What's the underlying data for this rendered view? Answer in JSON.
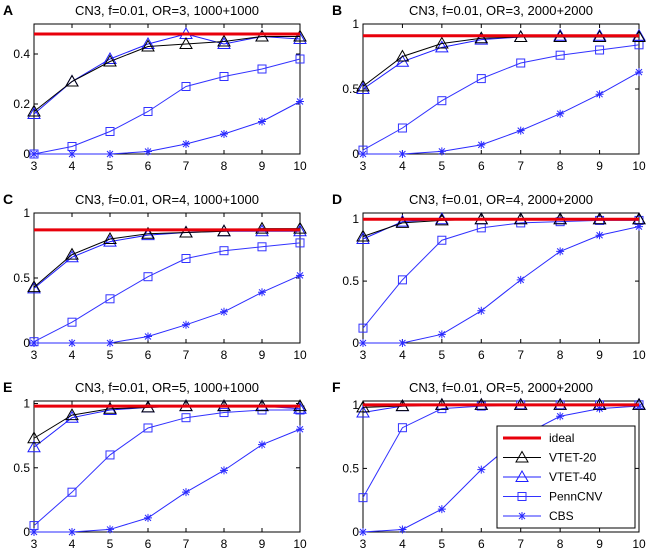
{
  "chart_data": [
    {
      "letter": "A",
      "type": "line",
      "title": "CN3, f=0.01, OR=3, 1000+1000",
      "x": [
        3,
        4,
        5,
        6,
        7,
        8,
        9,
        10
      ],
      "xlim": [
        3,
        10
      ],
      "ylim": [
        0,
        0.52
      ],
      "yticks": [
        0,
        0.2,
        0.4
      ],
      "ytick_labels": [
        "0",
        "0.2",
        "0.4"
      ],
      "xtick_labels": [
        "3",
        "4",
        "5",
        "6",
        "7",
        "8",
        "9",
        "10"
      ],
      "series": [
        {
          "name": "ideal",
          "values": [
            0.48,
            0.48,
            0.48,
            0.48,
            0.48,
            0.48,
            0.48,
            0.48
          ]
        },
        {
          "name": "VTET-20",
          "values": [
            0.17,
            0.29,
            0.37,
            0.43,
            0.44,
            0.45,
            0.47,
            0.47
          ]
        },
        {
          "name": "VTET-40",
          "values": [
            0.16,
            0.29,
            0.38,
            0.44,
            0.48,
            0.44,
            0.47,
            0.46
          ]
        },
        {
          "name": "PennCNV",
          "values": [
            0.0,
            0.03,
            0.09,
            0.17,
            0.27,
            0.31,
            0.34,
            0.38
          ]
        },
        {
          "name": "CBS",
          "values": [
            0.0,
            0.0,
            0.0,
            0.01,
            0.04,
            0.08,
            0.13,
            0.21
          ]
        }
      ]
    },
    {
      "letter": "B",
      "type": "line",
      "title": "CN3, f=0.01, OR=3, 2000+2000",
      "x": [
        3,
        4,
        5,
        6,
        7,
        8,
        9,
        10
      ],
      "xlim": [
        3,
        10
      ],
      "ylim": [
        0,
        1
      ],
      "yticks": [
        0,
        0.5,
        1
      ],
      "ytick_labels": [
        "0",
        "0.5",
        "1"
      ],
      "xtick_labels": [
        "3",
        "4",
        "5",
        "6",
        "7",
        "8",
        "9",
        "10"
      ],
      "series": [
        {
          "name": "ideal",
          "values": [
            0.91,
            0.91,
            0.91,
            0.91,
            0.91,
            0.91,
            0.91,
            0.91
          ]
        },
        {
          "name": "VTET-20",
          "values": [
            0.52,
            0.75,
            0.85,
            0.89,
            0.9,
            0.9,
            0.9,
            0.9
          ]
        },
        {
          "name": "VTET-40",
          "values": [
            0.5,
            0.71,
            0.82,
            0.88,
            0.9,
            0.91,
            0.91,
            0.91
          ]
        },
        {
          "name": "PennCNV",
          "values": [
            0.03,
            0.2,
            0.41,
            0.58,
            0.7,
            0.76,
            0.8,
            0.84
          ]
        },
        {
          "name": "CBS",
          "values": [
            0.0,
            0.0,
            0.02,
            0.07,
            0.18,
            0.31,
            0.46,
            0.63
          ]
        }
      ]
    },
    {
      "letter": "C",
      "type": "line",
      "title": "CN3, f=0.01, OR=4, 1000+1000",
      "x": [
        3,
        4,
        5,
        6,
        7,
        8,
        9,
        10
      ],
      "xlim": [
        3,
        10
      ],
      "ylim": [
        0,
        1
      ],
      "yticks": [
        0,
        0.5,
        1
      ],
      "ytick_labels": [
        "0",
        "0.5",
        "1"
      ],
      "xtick_labels": [
        "3",
        "4",
        "5",
        "6",
        "7",
        "8",
        "9",
        "10"
      ],
      "series": [
        {
          "name": "ideal",
          "values": [
            0.87,
            0.87,
            0.87,
            0.87,
            0.87,
            0.87,
            0.87,
            0.87
          ]
        },
        {
          "name": "VTET-20",
          "values": [
            0.43,
            0.68,
            0.8,
            0.84,
            0.85,
            0.86,
            0.88,
            0.88
          ]
        },
        {
          "name": "VTET-40",
          "values": [
            0.42,
            0.66,
            0.78,
            0.83,
            0.85,
            0.86,
            0.86,
            0.86
          ]
        },
        {
          "name": "PennCNV",
          "values": [
            0.01,
            0.16,
            0.34,
            0.51,
            0.65,
            0.71,
            0.74,
            0.77
          ]
        },
        {
          "name": "CBS",
          "values": [
            0.0,
            0.0,
            0.0,
            0.05,
            0.14,
            0.24,
            0.39,
            0.52
          ]
        }
      ]
    },
    {
      "letter": "D",
      "type": "line",
      "title": "CN3, f=0.01, OR=4, 2000+2000",
      "x": [
        3,
        4,
        5,
        6,
        7,
        8,
        9,
        10
      ],
      "xlim": [
        3,
        10
      ],
      "ylim": [
        0,
        1.05
      ],
      "yticks": [
        0,
        0.5,
        1
      ],
      "ytick_labels": [
        "0",
        "0.5",
        "1"
      ],
      "xtick_labels": [
        "3",
        "4",
        "5",
        "6",
        "7",
        "8",
        "9",
        "10"
      ],
      "series": [
        {
          "name": "ideal",
          "values": [
            1.0,
            1.0,
            1.0,
            1.0,
            1.0,
            1.0,
            1.0,
            1.0
          ]
        },
        {
          "name": "VTET-20",
          "values": [
            0.86,
            0.97,
            0.99,
            1.0,
            1.0,
            1.0,
            1.0,
            1.0
          ]
        },
        {
          "name": "VTET-40",
          "values": [
            0.84,
            0.98,
            1.0,
            1.0,
            1.0,
            1.0,
            1.0,
            1.0
          ]
        },
        {
          "name": "PennCNV",
          "values": [
            0.12,
            0.51,
            0.83,
            0.93,
            0.97,
            0.98,
            0.99,
            0.99
          ]
        },
        {
          "name": "CBS",
          "values": [
            0.0,
            0.0,
            0.07,
            0.26,
            0.51,
            0.74,
            0.87,
            0.94
          ]
        }
      ]
    },
    {
      "letter": "E",
      "type": "line",
      "title": "CN3, f=0.01, OR=5, 1000+1000",
      "x": [
        3,
        4,
        5,
        6,
        7,
        8,
        9,
        10
      ],
      "xlim": [
        3,
        10
      ],
      "ylim": [
        0,
        1.02
      ],
      "yticks": [
        0,
        0.5,
        1
      ],
      "ytick_labels": [
        "0",
        "0.5",
        "1"
      ],
      "xtick_labels": [
        "3",
        "4",
        "5",
        "6",
        "7",
        "8",
        "9",
        "10"
      ],
      "series": [
        {
          "name": "ideal",
          "values": [
            0.98,
            0.98,
            0.98,
            0.98,
            0.98,
            0.98,
            0.98,
            0.98
          ]
        },
        {
          "name": "VTET-20",
          "values": [
            0.73,
            0.91,
            0.96,
            0.97,
            0.98,
            0.98,
            0.98,
            0.98
          ]
        },
        {
          "name": "VTET-40",
          "values": [
            0.66,
            0.89,
            0.95,
            0.97,
            0.98,
            0.98,
            0.98,
            0.96
          ]
        },
        {
          "name": "PennCNV",
          "values": [
            0.05,
            0.31,
            0.6,
            0.81,
            0.89,
            0.93,
            0.95,
            0.95
          ]
        },
        {
          "name": "CBS",
          "values": [
            0.0,
            0.0,
            0.02,
            0.11,
            0.31,
            0.48,
            0.68,
            0.8
          ]
        }
      ]
    },
    {
      "letter": "F",
      "type": "line",
      "title": "CN3, f=0.01, OR=5, 2000+2000",
      "x": [
        3,
        4,
        5,
        6,
        7,
        8,
        9,
        10
      ],
      "xlim": [
        3,
        10
      ],
      "ylim": [
        0,
        1.03
      ],
      "yticks": [
        0,
        0.5,
        1
      ],
      "ytick_labels": [
        "0",
        "0.5",
        "1"
      ],
      "xtick_labels": [
        "3",
        "4",
        "5",
        "6",
        "7",
        "8",
        "9",
        "10"
      ],
      "series": [
        {
          "name": "ideal",
          "values": [
            1.0,
            1.0,
            1.0,
            1.0,
            1.0,
            1.0,
            1.0,
            1.0
          ]
        },
        {
          "name": "VTET-20",
          "values": [
            0.98,
            0.99,
            1.0,
            1.0,
            1.0,
            1.0,
            1.0,
            1.0
          ]
        },
        {
          "name": "VTET-40",
          "values": [
            0.94,
            0.99,
            1.0,
            1.0,
            1.0,
            1.0,
            1.0,
            1.0
          ]
        },
        {
          "name": "PennCNV",
          "values": [
            0.27,
            0.82,
            0.97,
            0.99,
            1.0,
            1.0,
            1.0,
            1.0
          ]
        },
        {
          "name": "CBS",
          "values": [
            0.0,
            0.02,
            0.18,
            0.49,
            0.75,
            0.91,
            0.97,
            0.99
          ]
        }
      ]
    }
  ],
  "legend": {
    "placement": "bottom-right of panel F",
    "entries": [
      {
        "name": "ideal",
        "label": "ideal"
      },
      {
        "name": "VTET-20",
        "label": "VTET-20"
      },
      {
        "name": "VTET-40",
        "label": "VTET-40"
      },
      {
        "name": "PennCNV",
        "label": "PennCNV"
      },
      {
        "name": "CBS",
        "label": "CBS"
      }
    ]
  },
  "styles": {
    "ideal": {
      "color": "#e8000b",
      "marker": "none"
    },
    "VTET-20": {
      "color": "#000000",
      "marker": "triangle"
    },
    "VTET-40": {
      "color": "#1f1fff",
      "marker": "triangle"
    },
    "PennCNV": {
      "color": "#3232ff",
      "marker": "square"
    },
    "CBS": {
      "color": "#2a2aff",
      "marker": "asterisk"
    }
  }
}
